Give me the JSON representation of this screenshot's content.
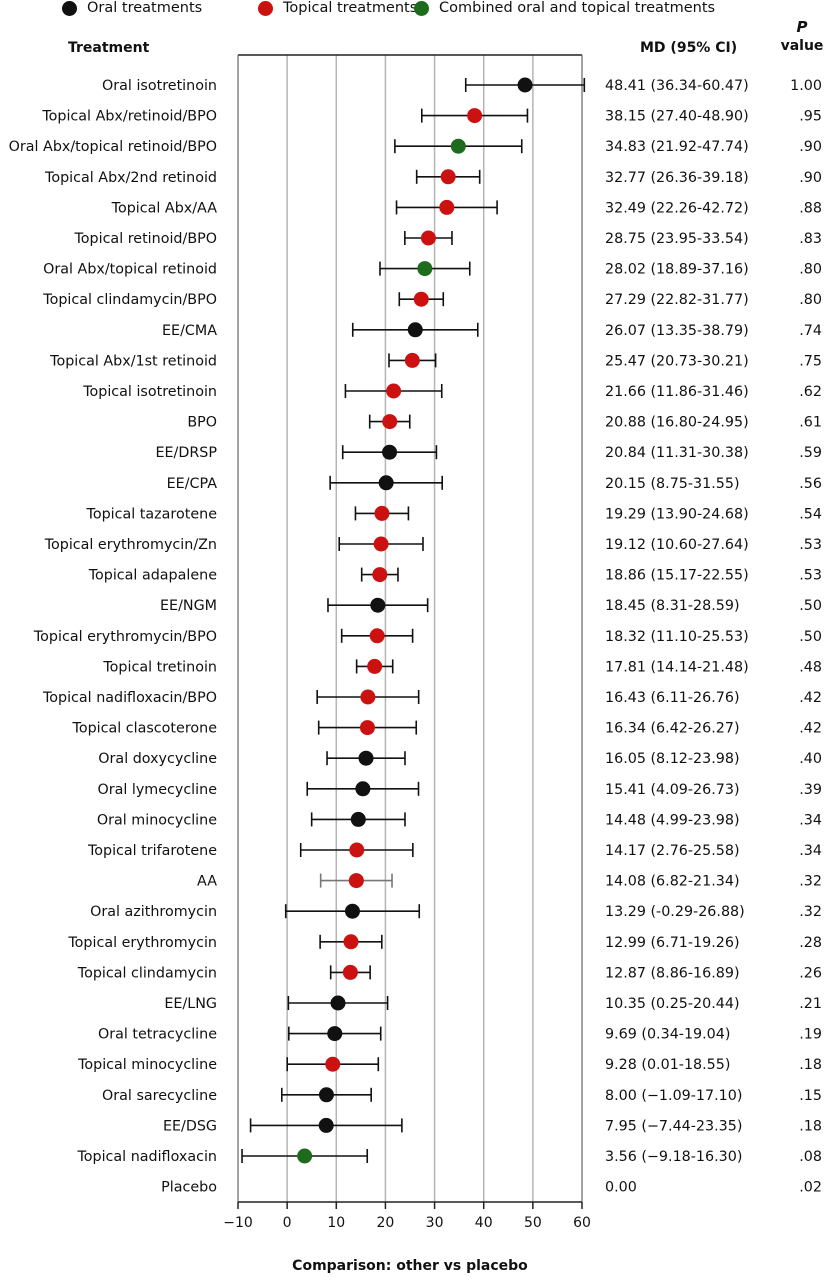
{
  "legend": [
    {
      "label": "Oral treatments",
      "color": "#111111"
    },
    {
      "label": "Topical treatments",
      "color": "#cc1111"
    },
    {
      "label": "Combined oral and topical treatments",
      "color": "#1e6b1e"
    }
  ],
  "headers": {
    "treatment": "Treatment",
    "md": "MD (95% CI)",
    "p_italic": "P",
    "p_rest": "value"
  },
  "chart_data": {
    "type": "forest",
    "xlabel": "Comparison: other vs placebo",
    "xlim": [
      -10,
      60
    ],
    "xticks": [
      -10,
      0,
      10,
      20,
      30,
      40,
      50,
      60
    ],
    "xtick_labels": [
      "−10",
      "0",
      "10",
      "20",
      "30",
      "40",
      "50",
      "60"
    ],
    "grid": true,
    "rows": [
      {
        "label": "Oral isotretinoin",
        "group": "oral",
        "md": 48.41,
        "lo": 36.34,
        "hi": 60.47,
        "md_text": "48.41 (36.34-60.47)",
        "p": "1.00"
      },
      {
        "label": "Topical Abx/retinoid/BPO",
        "group": "topical",
        "md": 38.15,
        "lo": 27.4,
        "hi": 48.9,
        "md_text": "38.15 (27.40-48.90)",
        "p": ".95"
      },
      {
        "label": "Oral Abx/topical retinoid/BPO",
        "group": "combined",
        "md": 34.83,
        "lo": 21.92,
        "hi": 47.74,
        "md_text": "34.83 (21.92-47.74)",
        "p": ".90"
      },
      {
        "label": "Topical Abx/2nd retinoid",
        "group": "topical",
        "md": 32.77,
        "lo": 26.36,
        "hi": 39.18,
        "md_text": "32.77 (26.36-39.18)",
        "p": ".90"
      },
      {
        "label": "Topical Abx/AA",
        "group": "topical",
        "md": 32.49,
        "lo": 22.26,
        "hi": 42.72,
        "md_text": "32.49 (22.26-42.72)",
        "p": ".88"
      },
      {
        "label": "Topical retinoid/BPO",
        "group": "topical",
        "md": 28.75,
        "lo": 23.95,
        "hi": 33.54,
        "md_text": "28.75 (23.95-33.54)",
        "p": ".83"
      },
      {
        "label": "Oral Abx/topical retinoid",
        "group": "combined",
        "md": 28.02,
        "lo": 18.89,
        "hi": 37.16,
        "md_text": "28.02 (18.89-37.16)",
        "p": ".80"
      },
      {
        "label": "Topical clindamycin/BPO",
        "group": "topical",
        "md": 27.29,
        "lo": 22.82,
        "hi": 31.77,
        "md_text": "27.29 (22.82-31.77)",
        "p": ".80"
      },
      {
        "label": "EE/CMA",
        "group": "oral",
        "md": 26.07,
        "lo": 13.35,
        "hi": 38.79,
        "md_text": "26.07 (13.35-38.79)",
        "p": ".74"
      },
      {
        "label": "Topical Abx/1st retinoid",
        "group": "topical",
        "md": 25.47,
        "lo": 20.73,
        "hi": 30.21,
        "md_text": "25.47 (20.73-30.21)",
        "p": ".75"
      },
      {
        "label": "Topical isotretinoin",
        "group": "topical",
        "md": 21.66,
        "lo": 11.86,
        "hi": 31.46,
        "md_text": "21.66 (11.86-31.46)",
        "p": ".62"
      },
      {
        "label": "BPO",
        "group": "topical",
        "md": 20.88,
        "lo": 16.8,
        "hi": 24.95,
        "md_text": "20.88 (16.80-24.95)",
        "p": ".61"
      },
      {
        "label": "EE/DRSP",
        "group": "oral",
        "md": 20.84,
        "lo": 11.31,
        "hi": 30.38,
        "md_text": "20.84 (11.31-30.38)",
        "p": ".59"
      },
      {
        "label": "EE/CPA",
        "group": "oral",
        "md": 20.15,
        "lo": 8.75,
        "hi": 31.55,
        "md_text": "20.15 (8.75-31.55)",
        "p": ".56"
      },
      {
        "label": "Topical tazarotene",
        "group": "topical",
        "md": 19.29,
        "lo": 13.9,
        "hi": 24.68,
        "md_text": "19.29 (13.90-24.68)",
        "p": ".54"
      },
      {
        "label": "Topical erythromycin/Zn",
        "group": "topical",
        "md": 19.12,
        "lo": 10.6,
        "hi": 27.64,
        "md_text": "19.12 (10.60-27.64)",
        "p": ".53"
      },
      {
        "label": "Topical adapalene",
        "group": "topical",
        "md": 18.86,
        "lo": 15.17,
        "hi": 22.55,
        "md_text": "18.86 (15.17-22.55)",
        "p": ".53"
      },
      {
        "label": "EE/NGM",
        "group": "oral",
        "md": 18.45,
        "lo": 8.31,
        "hi": 28.59,
        "md_text": "18.45 (8.31-28.59)",
        "p": ".50"
      },
      {
        "label": "Topical erythromycin/BPO",
        "group": "topical",
        "md": 18.32,
        "lo": 11.1,
        "hi": 25.53,
        "md_text": "18.32 (11.10-25.53)",
        "p": ".50"
      },
      {
        "label": "Topical tretinoin",
        "group": "topical",
        "md": 17.81,
        "lo": 14.14,
        "hi": 21.48,
        "md_text": "17.81 (14.14-21.48)",
        "p": ".48"
      },
      {
        "label": "Topical nadifloxacin/BPO",
        "group": "topical",
        "md": 16.43,
        "lo": 6.11,
        "hi": 26.76,
        "md_text": "16.43 (6.11-26.76)",
        "p": ".42"
      },
      {
        "label": "Topical clascoterone",
        "group": "topical",
        "md": 16.34,
        "lo": 6.42,
        "hi": 26.27,
        "md_text": "16.34 (6.42-26.27)",
        "p": ".42"
      },
      {
        "label": "Oral doxycycline",
        "group": "oral",
        "md": 16.05,
        "lo": 8.12,
        "hi": 23.98,
        "md_text": "16.05 (8.12-23.98)",
        "p": ".40"
      },
      {
        "label": "Oral lymecycline",
        "group": "oral",
        "md": 15.41,
        "lo": 4.09,
        "hi": 26.73,
        "md_text": "15.41 (4.09-26.73)",
        "p": ".39"
      },
      {
        "label": "Oral minocycline",
        "group": "oral",
        "md": 14.48,
        "lo": 4.99,
        "hi": 23.98,
        "md_text": "14.48 (4.99-23.98)",
        "p": ".34"
      },
      {
        "label": "Topical trifarotene",
        "group": "topical",
        "md": 14.17,
        "lo": 2.76,
        "hi": 25.58,
        "md_text": "14.17 (2.76-25.58)",
        "p": ".34"
      },
      {
        "label": "AA",
        "group": "topical",
        "md": 14.08,
        "lo": 6.82,
        "hi": 21.34,
        "md_text": "14.08 (6.82-21.34)",
        "p": ".32",
        "ci_color": "#777777"
      },
      {
        "label": "Oral azithromycin",
        "group": "oral",
        "md": 13.29,
        "lo": -0.29,
        "hi": 26.88,
        "md_text": "13.29 (-0.29-26.88)",
        "p": ".32"
      },
      {
        "label": "Topical erythromycin",
        "group": "topical",
        "md": 12.99,
        "lo": 6.71,
        "hi": 19.26,
        "md_text": "12.99 (6.71-19.26)",
        "p": ".28"
      },
      {
        "label": "Topical clindamycin",
        "group": "topical",
        "md": 12.87,
        "lo": 8.86,
        "hi": 16.89,
        "md_text": "12.87 (8.86-16.89)",
        "p": ".26"
      },
      {
        "label": "EE/LNG",
        "group": "oral",
        "md": 10.35,
        "lo": 0.25,
        "hi": 20.44,
        "md_text": "10.35 (0.25-20.44)",
        "p": ".21"
      },
      {
        "label": "Oral tetracycline",
        "group": "oral",
        "md": 9.69,
        "lo": 0.34,
        "hi": 19.04,
        "md_text": "9.69 (0.34-19.04)",
        "p": ".19"
      },
      {
        "label": "Topical minocycline",
        "group": "topical",
        "md": 9.28,
        "lo": 0.01,
        "hi": 18.55,
        "md_text": "9.28 (0.01-18.55)",
        "p": ".18"
      },
      {
        "label": "Oral sarecycline",
        "group": "oral",
        "md": 8.0,
        "lo": -1.09,
        "hi": 17.1,
        "md_text": "8.00 (−1.09-17.10)",
        "p": ".15"
      },
      {
        "label": "EE/DSG",
        "group": "oral",
        "md": 7.95,
        "lo": -7.44,
        "hi": 23.35,
        "md_text": "7.95 (−7.44-23.35)",
        "p": ".18"
      },
      {
        "label": "Topical nadifloxacin",
        "group": "combined",
        "md": 3.56,
        "lo": -9.18,
        "hi": 16.3,
        "md_text": "3.56 (−9.18-16.30)",
        "p": ".08"
      },
      {
        "label": "Placebo",
        "group": null,
        "md": 0.0,
        "lo": null,
        "hi": null,
        "md_text": "0.00",
        "p": ".02"
      }
    ]
  }
}
